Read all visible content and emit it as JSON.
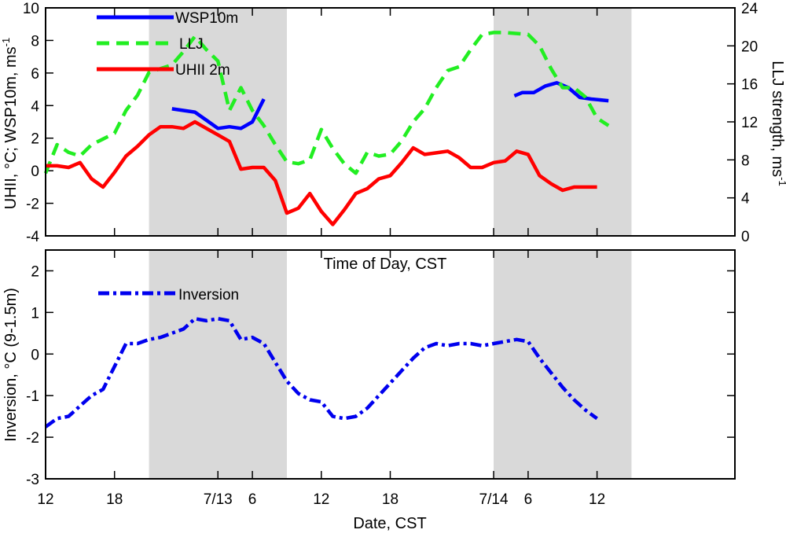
{
  "chart_data": [
    {
      "type": "line",
      "panel": "top",
      "xlabel": "Time of Day, CST",
      "ylabel": "UHII, °C; WSP10m, ms",
      "ylabel_sup": "-1",
      "y2label": "LLJ strength, ms",
      "y2label_sup": "-1",
      "xlim": [
        12,
        72
      ],
      "ylim": [
        -4,
        10
      ],
      "y2lim": [
        0,
        24
      ],
      "yticks": [
        "-4",
        "-2",
        "0",
        "2",
        "4",
        "6",
        "8",
        "10"
      ],
      "y2ticks": [
        "0",
        "4",
        "8",
        "12",
        "16",
        "20",
        "24"
      ],
      "shaded_x": [
        [
          21,
          33
        ],
        [
          51,
          63
        ]
      ],
      "legend_position": "top-left",
      "series": [
        {
          "name": "WSP10m",
          "axis": "left",
          "color": "#0000ff",
          "style": "solid",
          "segments": [
            [
              [
                23,
                3.8
              ],
              [
                24,
                3.7
              ],
              [
                25,
                3.6
              ],
              [
                26,
                3.1
              ],
              [
                27,
                2.6
              ],
              [
                28,
                2.7
              ],
              [
                29,
                2.6
              ],
              [
                30,
                3.0
              ],
              [
                31,
                4.4
              ]
            ],
            [
              [
                52.8,
                4.6
              ],
              [
                53.5,
                4.8
              ],
              [
                54.5,
                4.8
              ],
              [
                55.5,
                5.2
              ],
              [
                56.5,
                5.4
              ],
              [
                57.5,
                5.1
              ],
              [
                58.5,
                4.5
              ],
              [
                59.5,
                4.4
              ],
              [
                61,
                4.3
              ]
            ]
          ]
        },
        {
          "name": "LLJ",
          "axis": "right",
          "color": "#22ee22",
          "style": "dashed",
          "points": [
            [
              12,
              6.6
            ],
            [
              13,
              9.6
            ],
            [
              14,
              8.8
            ],
            [
              15,
              8.4
            ],
            [
              16,
              9.6
            ],
            [
              17,
              10.2
            ],
            [
              18,
              10.8
            ],
            [
              19,
              13.2
            ],
            [
              20,
              14.8
            ],
            [
              21,
              17.2
            ],
            [
              22,
              17.6
            ],
            [
              23,
              18.0
            ],
            [
              24,
              19.4
            ],
            [
              25,
              21.0
            ],
            [
              26,
              19.6
            ],
            [
              27,
              18.4
            ],
            [
              28,
              13.2
            ],
            [
              29,
              15.6
            ],
            [
              30,
              13.2
            ],
            [
              31,
              11.6
            ],
            [
              32,
              9.6
            ],
            [
              33,
              7.8
            ],
            [
              34,
              7.6
            ],
            [
              35,
              8.0
            ],
            [
              36,
              11.2
            ],
            [
              37,
              9.2
            ],
            [
              38,
              7.6
            ],
            [
              39,
              6.6
            ],
            [
              40,
              8.8
            ],
            [
              41,
              8.4
            ],
            [
              42,
              8.6
            ],
            [
              43,
              10.0
            ],
            [
              44,
              12.0
            ],
            [
              45,
              13.4
            ],
            [
              46,
              15.6
            ],
            [
              47,
              17.4
            ],
            [
              48,
              17.8
            ],
            [
              49,
              19.6
            ],
            [
              50,
              21.2
            ],
            [
              51,
              21.4
            ],
            [
              52,
              21.4
            ],
            [
              53,
              21.3
            ],
            [
              54,
              21.2
            ],
            [
              55,
              20.0
            ],
            [
              56,
              17.6
            ],
            [
              57,
              15.6
            ],
            [
              58,
              15.6
            ],
            [
              59,
              14.6
            ],
            [
              60,
              12.4
            ],
            [
              61,
              11.6
            ]
          ]
        },
        {
          "name": "UHII 2m",
          "axis": "left",
          "color": "#ff0000",
          "style": "solid",
          "points": [
            [
              12,
              0.3
            ],
            [
              13,
              0.3
            ],
            [
              14,
              0.2
            ],
            [
              15,
              0.5
            ],
            [
              16,
              -0.5
            ],
            [
              17,
              -1.0
            ],
            [
              18,
              -0.1
            ],
            [
              19,
              0.9
            ],
            [
              20,
              1.5
            ],
            [
              21,
              2.2
            ],
            [
              22,
              2.7
            ],
            [
              23,
              2.7
            ],
            [
              24,
              2.6
            ],
            [
              25,
              3.0
            ],
            [
              26,
              2.6
            ],
            [
              27,
              2.2
            ],
            [
              28,
              1.8
            ],
            [
              29,
              0.1
            ],
            [
              30,
              0.2
            ],
            [
              31,
              0.2
            ],
            [
              32,
              -0.6
            ],
            [
              33,
              -2.6
            ],
            [
              34,
              -2.3
            ],
            [
              35,
              -1.4
            ],
            [
              36,
              -2.5
            ],
            [
              37,
              -3.3
            ],
            [
              38,
              -2.4
            ],
            [
              39,
              -1.4
            ],
            [
              40,
              -1.1
            ],
            [
              41,
              -0.5
            ],
            [
              42,
              -0.3
            ],
            [
              43,
              0.5
            ],
            [
              44,
              1.4
            ],
            [
              45,
              1.0
            ],
            [
              46,
              1.1
            ],
            [
              47,
              1.2
            ],
            [
              48,
              0.8
            ],
            [
              49,
              0.2
            ],
            [
              50,
              0.2
            ],
            [
              51,
              0.5
            ],
            [
              52,
              0.6
            ],
            [
              53,
              1.2
            ],
            [
              54,
              1.0
            ],
            [
              55,
              -0.3
            ],
            [
              56,
              -0.8
            ],
            [
              57,
              -1.2
            ],
            [
              58,
              -1.0
            ],
            [
              59,
              -1.0
            ],
            [
              60,
              -1.0
            ]
          ]
        }
      ]
    },
    {
      "type": "line",
      "panel": "bottom",
      "xlabel": "Date, CST",
      "ylabel": "Inversion, °C (9-1.5m)",
      "xlim": [
        12,
        72
      ],
      "ylim": [
        -3,
        2.5
      ],
      "yticks": [
        "-3",
        "-2",
        "-1",
        "0",
        "1",
        "2"
      ],
      "xticks": [
        {
          "x": 12,
          "label": "12"
        },
        {
          "x": 18,
          "label": "18"
        },
        {
          "x": 27,
          "label": "7/13"
        },
        {
          "x": 30,
          "label": "6"
        },
        {
          "x": 36,
          "label": "12"
        },
        {
          "x": 42,
          "label": "18"
        },
        {
          "x": 51,
          "label": "7/14"
        },
        {
          "x": 54,
          "label": "6"
        },
        {
          "x": 60,
          "label": "12"
        }
      ],
      "shaded_x": [
        [
          21,
          33
        ],
        [
          51,
          63
        ]
      ],
      "legend_position": "top-left",
      "series": [
        {
          "name": "Inversion",
          "color": "#0000ee",
          "style": "dashdot",
          "points": [
            [
              12,
              -1.75
            ],
            [
              13,
              -1.55
            ],
            [
              14,
              -1.5
            ],
            [
              15,
              -1.25
            ],
            [
              16,
              -1.0
            ],
            [
              17,
              -0.85
            ],
            [
              18,
              -0.3
            ],
            [
              19,
              0.25
            ],
            [
              20,
              0.25
            ],
            [
              21,
              0.35
            ],
            [
              22,
              0.4
            ],
            [
              23,
              0.5
            ],
            [
              24,
              0.6
            ],
            [
              25,
              0.85
            ],
            [
              26,
              0.8
            ],
            [
              27,
              0.85
            ],
            [
              28,
              0.8
            ],
            [
              29,
              0.35
            ],
            [
              30,
              0.4
            ],
            [
              31,
              0.25
            ],
            [
              32,
              -0.2
            ],
            [
              33,
              -0.65
            ],
            [
              34,
              -0.95
            ],
            [
              35,
              -1.1
            ],
            [
              36,
              -1.15
            ],
            [
              37,
              -1.5
            ],
            [
              38,
              -1.55
            ],
            [
              39,
              -1.5
            ],
            [
              40,
              -1.3
            ],
            [
              41,
              -1.0
            ],
            [
              42,
              -0.7
            ],
            [
              43,
              -0.4
            ],
            [
              44,
              -0.1
            ],
            [
              45,
              0.15
            ],
            [
              46,
              0.25
            ],
            [
              47,
              0.2
            ],
            [
              48,
              0.25
            ],
            [
              49,
              0.25
            ],
            [
              50,
              0.2
            ],
            [
              51,
              0.25
            ],
            [
              52,
              0.3
            ],
            [
              53,
              0.35
            ],
            [
              54,
              0.3
            ],
            [
              55,
              -0.1
            ],
            [
              56,
              -0.45
            ],
            [
              57,
              -0.8
            ],
            [
              58,
              -1.1
            ],
            [
              59,
              -1.35
            ],
            [
              60,
              -1.55
            ]
          ]
        }
      ]
    }
  ]
}
